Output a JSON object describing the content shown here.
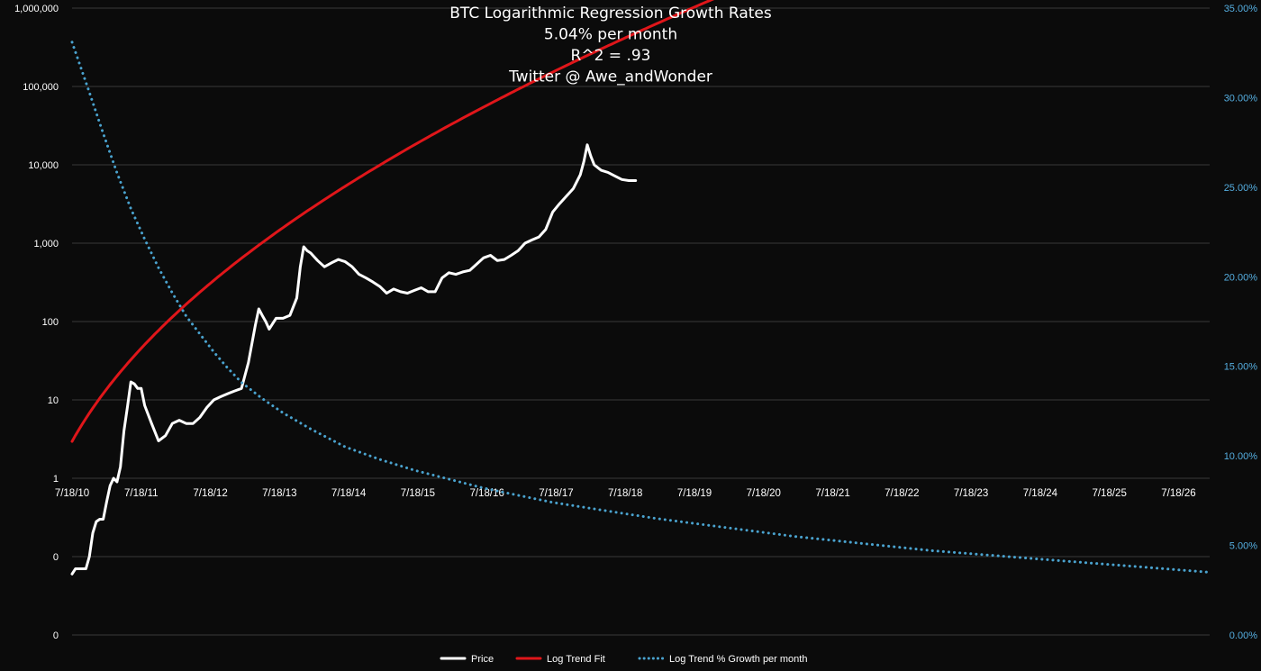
{
  "chart_data": {
    "type": "line",
    "title_lines": [
      "BTC Logarithmic Regression Growth Rates",
      "5.04% per month",
      "R^2 = .93",
      "Twitter @ Awe_andWonder"
    ],
    "x_ticks": [
      "7/18/10",
      "7/18/11",
      "7/18/12",
      "7/18/13",
      "7/18/14",
      "7/18/15",
      "7/18/16",
      "7/18/17",
      "7/18/18",
      "7/18/19",
      "7/18/20",
      "7/18/21",
      "7/18/22",
      "7/18/23",
      "7/18/24",
      "7/18/25",
      "7/18/26"
    ],
    "x_range": [
      2010.55,
      2027.0
    ],
    "y_left": {
      "scale": "log",
      "range_log10": [
        -2,
        6
      ],
      "tick_labels": [
        "1,000,000",
        "100,000",
        "10,000",
        "1,000",
        "100",
        "10",
        "1",
        "0",
        "0"
      ],
      "tick_values_log10": [
        6,
        5,
        4,
        3,
        2,
        1,
        0,
        -1,
        -2
      ]
    },
    "y_right": {
      "scale": "linear",
      "range": [
        0,
        35
      ],
      "tick_labels": [
        "35.00%",
        "30.00%",
        "25.00%",
        "20.00%",
        "15.00%",
        "10.00%",
        "5.00%",
        "0.00%"
      ],
      "tick_values": [
        35,
        30,
        25,
        20,
        15,
        10,
        5,
        0
      ]
    },
    "grid": true,
    "legend_position": "bottom",
    "series": [
      {
        "name": "Price",
        "axis": "left",
        "color": "#ffffff",
        "style": "solid",
        "x": [
          2010.55,
          2010.6,
          2010.7,
          2010.75,
          2010.8,
          2010.85,
          2010.9,
          2010.95,
          2011.0,
          2011.05,
          2011.1,
          2011.15,
          2011.2,
          2011.25,
          2011.3,
          2011.35,
          2011.4,
          2011.45,
          2011.5,
          2011.55,
          2011.6,
          2011.7,
          2011.8,
          2011.9,
          2012.0,
          2012.1,
          2012.2,
          2012.3,
          2012.4,
          2012.5,
          2012.6,
          2012.7,
          2012.8,
          2012.9,
          2013.0,
          2013.1,
          2013.2,
          2013.25,
          2013.3,
          2013.35,
          2013.4,
          2013.5,
          2013.6,
          2013.7,
          2013.8,
          2013.85,
          2013.9,
          2013.95,
          2014.0,
          2014.1,
          2014.2,
          2014.3,
          2014.4,
          2014.5,
          2014.6,
          2014.7,
          2014.8,
          2014.9,
          2015.0,
          2015.1,
          2015.2,
          2015.3,
          2015.4,
          2015.5,
          2015.6,
          2015.7,
          2015.8,
          2015.9,
          2016.0,
          2016.1,
          2016.2,
          2016.3,
          2016.4,
          2016.5,
          2016.6,
          2016.7,
          2016.8,
          2016.9,
          2017.0,
          2017.1,
          2017.2,
          2017.3,
          2017.4,
          2017.5,
          2017.6,
          2017.7,
          2017.8,
          2017.9,
          2017.95,
          2018.0,
          2018.05,
          2018.1,
          2018.2,
          2018.3,
          2018.4,
          2018.5,
          2018.6,
          2018.7
        ],
        "y": [
          0.06,
          0.07,
          0.07,
          0.07,
          0.1,
          0.2,
          0.28,
          0.3,
          0.3,
          0.5,
          0.8,
          1.0,
          0.9,
          1.4,
          4.0,
          8.0,
          17,
          16,
          14,
          14,
          8.5,
          5.0,
          3.0,
          3.5,
          5.0,
          5.5,
          5.0,
          5.0,
          6.0,
          8.0,
          10,
          11,
          12,
          13,
          14,
          30,
          90,
          145,
          120,
          100,
          80,
          110,
          110,
          120,
          200,
          500,
          900,
          800,
          750,
          600,
          500,
          560,
          620,
          580,
          500,
          400,
          360,
          320,
          280,
          230,
          260,
          240,
          230,
          250,
          270,
          240,
          240,
          360,
          420,
          400,
          430,
          450,
          540,
          650,
          700,
          600,
          620,
          700,
          800,
          1000,
          1100,
          1200,
          1500,
          2500,
          3200,
          4000,
          5000,
          7500,
          11000,
          18000,
          13000,
          10000,
          8500,
          8000,
          7200,
          6500,
          6300,
          6300
        ]
      },
      {
        "name": "Log Trend Fit",
        "axis": "left",
        "color": "#e0161a",
        "style": "solid",
        "fit_log10": {
          "a": 0.2,
          "b": -1.28,
          "origin": 2010.0
        }
      },
      {
        "name": "Log Trend % Growth per month",
        "axis": "right",
        "color": "#4aa3cf",
        "style": "dotted",
        "x": [
          2010.55,
          2010.8,
          2011.0,
          2011.2,
          2011.4,
          2011.6,
          2011.8,
          2012.0,
          2012.2,
          2012.4,
          2012.6,
          2012.8,
          2013.0,
          2013.3,
          2013.6,
          2014.0,
          2014.5,
          2015.0,
          2015.5,
          2016.0,
          2016.5,
          2017.0,
          2017.5,
          2018.0,
          2018.5,
          2019.0,
          2020.0,
          2021.0,
          2022.0,
          2023.0,
          2024.0,
          2025.0,
          2026.0,
          2027.0
        ],
        "y": [
          33.1,
          30.3,
          28.0,
          25.8,
          23.8,
          22.1,
          20.5,
          19.1,
          17.8,
          16.8,
          15.8,
          14.9,
          14.1,
          13.2,
          12.4,
          11.5,
          10.5,
          9.8,
          9.2,
          8.7,
          8.2,
          7.8,
          7.4,
          7.1,
          6.8,
          6.5,
          6.0,
          5.5,
          5.1,
          4.7,
          4.4,
          4.1,
          3.8,
          3.5
        ]
      }
    ]
  }
}
